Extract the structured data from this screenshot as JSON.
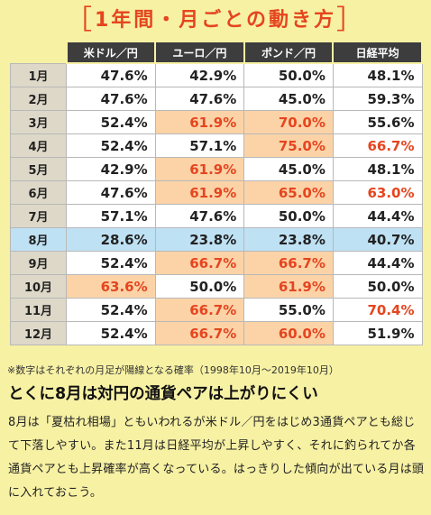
{
  "title": "1年間・月ごとの動き方",
  "headers": [
    "米ドル／円",
    "ユーロ／円",
    "ポンド／円",
    "日経平均"
  ],
  "rows": [
    {
      "month": "1月",
      "values": [
        "47.6%",
        "42.9%",
        "50.0%",
        "48.1%"
      ],
      "highlight": [
        false,
        false,
        false,
        false
      ],
      "red": [
        false,
        false,
        false,
        false
      ],
      "blue": false
    },
    {
      "month": "2月",
      "values": [
        "47.6%",
        "47.6%",
        "45.0%",
        "59.3%"
      ],
      "highlight": [
        false,
        false,
        false,
        false
      ],
      "red": [
        false,
        false,
        false,
        false
      ],
      "blue": false
    },
    {
      "month": "3月",
      "values": [
        "52.4%",
        "61.9%",
        "70.0%",
        "55.6%"
      ],
      "highlight": [
        false,
        true,
        true,
        false
      ],
      "red": [
        false,
        false,
        false,
        false
      ],
      "blue": false
    },
    {
      "month": "4月",
      "values": [
        "52.4%",
        "57.1%",
        "75.0%",
        "66.7%"
      ],
      "highlight": [
        false,
        false,
        true,
        false
      ],
      "red": [
        false,
        false,
        false,
        true
      ],
      "blue": false
    },
    {
      "month": "5月",
      "values": [
        "42.9%",
        "61.9%",
        "45.0%",
        "48.1%"
      ],
      "highlight": [
        false,
        true,
        false,
        false
      ],
      "red": [
        false,
        false,
        false,
        false
      ],
      "blue": false
    },
    {
      "month": "6月",
      "values": [
        "47.6%",
        "61.9%",
        "65.0%",
        "63.0%"
      ],
      "highlight": [
        false,
        true,
        true,
        false
      ],
      "red": [
        false,
        false,
        false,
        true
      ],
      "blue": false
    },
    {
      "month": "7月",
      "values": [
        "57.1%",
        "47.6%",
        "50.0%",
        "44.4%"
      ],
      "highlight": [
        false,
        false,
        false,
        false
      ],
      "red": [
        false,
        false,
        false,
        false
      ],
      "blue": false
    },
    {
      "month": "8月",
      "values": [
        "28.6%",
        "23.8%",
        "23.8%",
        "40.7%"
      ],
      "highlight": [
        false,
        false,
        false,
        false
      ],
      "red": [
        false,
        false,
        false,
        false
      ],
      "blue": true
    },
    {
      "month": "9月",
      "values": [
        "52.4%",
        "66.7%",
        "66.7%",
        "44.4%"
      ],
      "highlight": [
        false,
        true,
        true,
        false
      ],
      "red": [
        false,
        false,
        false,
        false
      ],
      "blue": false
    },
    {
      "month": "10月",
      "values": [
        "63.6%",
        "50.0%",
        "61.9%",
        "50.0%"
      ],
      "highlight": [
        true,
        false,
        true,
        false
      ],
      "red": [
        false,
        false,
        false,
        false
      ],
      "blue": false
    },
    {
      "month": "11月",
      "values": [
        "52.4%",
        "66.7%",
        "55.0%",
        "70.4%"
      ],
      "highlight": [
        false,
        true,
        false,
        false
      ],
      "red": [
        false,
        false,
        false,
        true
      ],
      "blue": false
    },
    {
      "month": "12月",
      "values": [
        "52.4%",
        "66.7%",
        "60.0%",
        "51.9%"
      ],
      "highlight": [
        false,
        true,
        true,
        false
      ],
      "red": [
        false,
        false,
        false,
        false
      ],
      "blue": false
    }
  ],
  "note": "※数字はそれぞれの月足が陽線となる確率（1998年10月〜2019年10月）",
  "headline": "とくに8月は対円の通貨ペアは上がりにくい",
  "body_text": "8月は「夏枯れ相場」ともいわれるが米ドル／円をはじめ3通貨ペアとも総じて下落しやすい。また11月は日経平均が上昇しやすく、それに釣られてか各通貨ペアとも上昇確率が高くなっている。はっきりした傾向が出ている月は頭に入れておこう。",
  "colors": {
    "accent_red": "#e5451f",
    "highlight_orange": "#fbd3a7",
    "highlight_blue": "#bfe1f4",
    "background": "#f7f1a4",
    "header_dark": "#3d3d3d"
  }
}
